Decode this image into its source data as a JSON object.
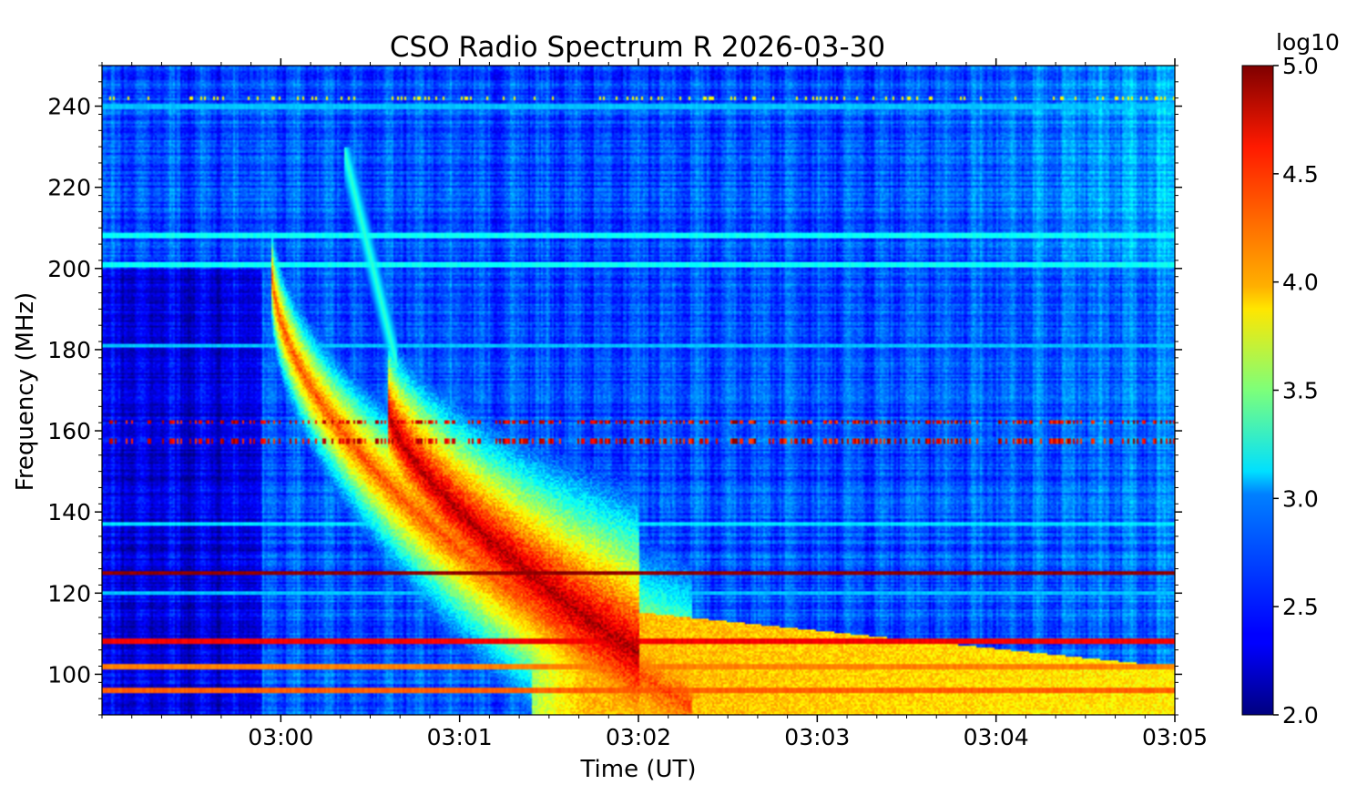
{
  "chart_data": {
    "type": "heatmap",
    "title": "CSO Radio Spectrum R 2026-03-30",
    "xlabel": "Time (UT)",
    "ylabel": "Frequency (MHz)",
    "x_ticks": [
      "03:00",
      "03:01",
      "03:02",
      "03:03",
      "03:04",
      "03:05"
    ],
    "x_range_minutes": [
      -1.0,
      5.0
    ],
    "y_ticks": [
      100,
      120,
      140,
      160,
      180,
      200,
      220,
      240
    ],
    "y_range_mhz": [
      90,
      250
    ],
    "colorbar": {
      "label": "log10",
      "range": [
        2.0,
        5.0
      ],
      "ticks": [
        "2.0",
        "2.5",
        "3.0",
        "3.5",
        "4.0",
        "4.5",
        "5.0"
      ],
      "colormap": "jet"
    },
    "background_level": 2.6,
    "features": [
      {
        "name": "type II burst (fundamental)",
        "peak_level": 4.6,
        "start_freq_mhz": 200,
        "end_freq_mhz": 92,
        "start_time_min": -0.05,
        "end_time_min": 2.3
      },
      {
        "name": "type II burst (harmonic / core)",
        "peak_level": 4.9,
        "start_freq_mhz": 165,
        "end_freq_mhz": 105,
        "start_time_min": 0.6,
        "end_time_min": 2.0
      },
      {
        "name": "diffuse continuum",
        "peak_level": 4.2,
        "start_freq_mhz": 118,
        "end_freq_mhz": 92,
        "start_time_min": 1.5,
        "end_time_min": 5.0
      },
      {
        "name": "faint drifting branch",
        "peak_level": 3.3,
        "start_freq_mhz": 225,
        "end_freq_mhz": 175,
        "start_time_min": 0.45,
        "end_time_min": 0.55
      }
    ],
    "interference_lines_mhz": [
      {
        "freq": 125,
        "level": 5.0
      },
      {
        "freq": 108,
        "level": 4.7
      },
      {
        "freq": 102,
        "level": 4.3
      },
      {
        "freq": 96,
        "level": 4.4
      },
      {
        "freq": 208,
        "level": 3.2
      },
      {
        "freq": 201,
        "level": 3.2
      },
      {
        "freq": 240,
        "level": 3.0
      },
      {
        "freq": 137,
        "level": 3.1
      },
      {
        "freq": 120,
        "level": 3.0
      },
      {
        "freq": 181,
        "level": 3.0
      }
    ]
  }
}
